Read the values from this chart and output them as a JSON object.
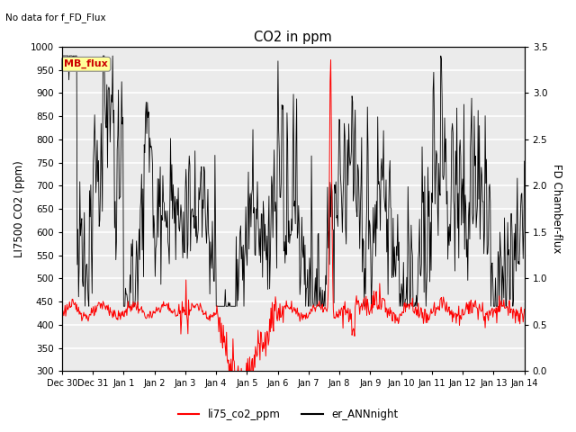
{
  "title": "CO2 in ppm",
  "subtitle": "No data for f_FD_Flux",
  "ylabel_left": "LI7500 CO2 (ppm)",
  "ylabel_right": "FD Chamber-flux",
  "ylim_left": [
    300,
    1000
  ],
  "ylim_right": [
    0.0,
    3.5
  ],
  "yticks_left": [
    300,
    350,
    400,
    450,
    500,
    550,
    600,
    650,
    700,
    750,
    800,
    850,
    900,
    950,
    1000
  ],
  "yticks_right": [
    0.0,
    0.5,
    1.0,
    1.5,
    2.0,
    2.5,
    3.0,
    3.5
  ],
  "legend_entries": [
    "li75_co2_ppm",
    "er_ANNnight"
  ],
  "legend_colors": [
    "red",
    "black"
  ],
  "mb_flux_label": "MB_flux",
  "mb_flux_color": "#cc0000",
  "mb_flux_bg": "#ffff99",
  "line_color_red": "red",
  "line_color_black": "black",
  "num_days": 15,
  "figsize": [
    6.4,
    4.8
  ],
  "dpi": 100
}
